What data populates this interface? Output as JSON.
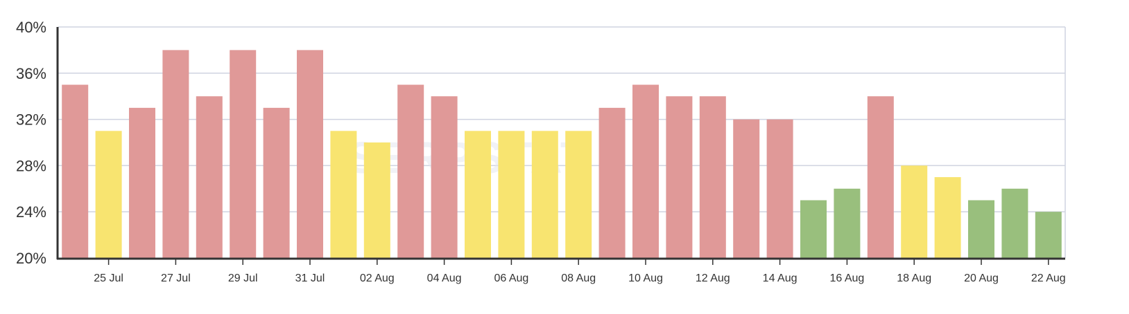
{
  "watermark": "SERPSTAT",
  "colors": {
    "high": "#e09998",
    "mid": "#f8e470",
    "low": "#99bf7d",
    "grid": "#cfd3e0",
    "axis": "#333333"
  },
  "chart_data": {
    "type": "bar",
    "title": "",
    "xlabel": "",
    "ylabel": "",
    "ylim": [
      20,
      40
    ],
    "y_ticks": [
      "20%",
      "24%",
      "28%",
      "32%",
      "36%",
      "40%"
    ],
    "x_tick_labels": [
      "25 Jul",
      "27 Jul",
      "29 Jul",
      "31 Jul",
      "02 Aug",
      "04 Aug",
      "06 Aug",
      "08 Aug",
      "10 Aug",
      "12 Aug",
      "14 Aug",
      "16 Aug",
      "18 Aug",
      "20 Aug",
      "22 Aug"
    ],
    "grid": true,
    "categories": [
      "24 Jul",
      "25 Jul",
      "26 Jul",
      "27 Jul",
      "28 Jul",
      "29 Jul",
      "30 Jul",
      "31 Jul",
      "01 Aug",
      "02 Aug",
      "03 Aug",
      "04 Aug",
      "05 Aug",
      "06 Aug",
      "07 Aug",
      "08 Aug",
      "09 Aug",
      "10 Aug",
      "11 Aug",
      "12 Aug",
      "13 Aug",
      "14 Aug",
      "15 Aug",
      "16 Aug",
      "17 Aug",
      "18 Aug",
      "19 Aug",
      "20 Aug",
      "21 Aug",
      "22 Aug"
    ],
    "values": [
      35,
      31,
      33,
      38,
      34,
      38,
      33,
      38,
      31,
      30,
      35,
      34,
      31,
      31,
      31,
      31,
      33,
      35,
      34,
      34,
      32,
      32,
      25,
      26,
      34,
      28,
      27,
      25,
      26,
      24
    ],
    "bar_colors": [
      "high",
      "mid",
      "high",
      "high",
      "high",
      "high",
      "high",
      "high",
      "mid",
      "mid",
      "high",
      "high",
      "mid",
      "mid",
      "mid",
      "mid",
      "high",
      "high",
      "high",
      "high",
      "high",
      "high",
      "low",
      "low",
      "high",
      "mid",
      "mid",
      "low",
      "low",
      "low"
    ]
  }
}
